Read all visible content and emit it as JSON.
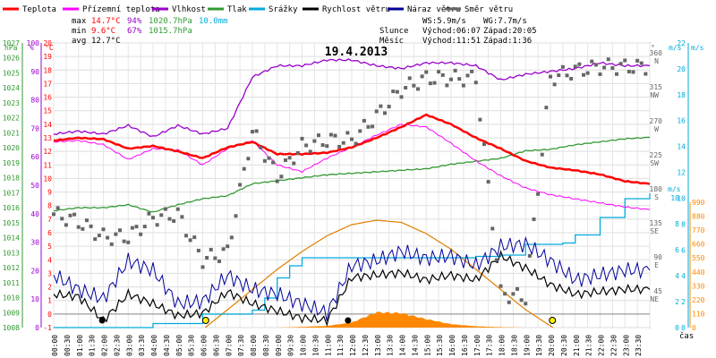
{
  "chart_data": {
    "type": "line",
    "title": "19.4.2013",
    "xlabel": "čas",
    "x_hours": [
      0,
      1,
      2,
      3,
      4,
      5,
      6,
      7,
      8,
      9,
      10,
      11,
      12,
      13,
      14,
      15,
      16,
      17,
      18,
      19,
      20,
      21,
      22,
      23,
      24
    ],
    "time_ticks": [
      "00:00",
      "00:30",
      "01:00",
      "01:30",
      "02:00",
      "02:30",
      "03:00",
      "03:30",
      "04:00",
      "04:30",
      "05:00",
      "05:30",
      "06:00",
      "06:30",
      "07:00",
      "07:30",
      "08:00",
      "08:30",
      "09:00",
      "09:30",
      "10:00",
      "10:30",
      "11:00",
      "11:30",
      "12:00",
      "12:30",
      "13:00",
      "13:30",
      "14:00",
      "14:30",
      "15:00",
      "15:30",
      "16:00",
      "16:30",
      "17:00",
      "17:30",
      "18:00",
      "18:30",
      "19:00",
      "19:30",
      "20:00",
      "20:30",
      "21:00",
      "21:30",
      "22:00",
      "22:30",
      "23:00",
      "23:30"
    ],
    "legend": [
      {
        "label": "Teplota",
        "color": "#ff0000"
      },
      {
        "label": "Přízemní teplota",
        "color": "#ff00ff"
      },
      {
        "label": "Vlhkost",
        "color": "#9900cc"
      },
      {
        "label": "Tlak",
        "color": "#339933"
      },
      {
        "label": "Srážky",
        "color": "#00aadd"
      },
      {
        "label": "Rychlost větru",
        "color": "#000000"
      },
      {
        "label": "Náraz větru",
        "color": "#000099"
      },
      {
        "label": "Směr větru",
        "color": "#666666"
      }
    ],
    "stats": {
      "max": {
        "label": "max",
        "temp": "14.7°C",
        "hum": "94%",
        "press": "1020.7hPa",
        "rain": "10.0mm"
      },
      "min": {
        "label": "min",
        "temp": "9.6°C",
        "hum": "67%",
        "press": "1015.7hPa"
      },
      "avg": {
        "label": "avg",
        "temp": "12.7°C"
      }
    },
    "wind_info": {
      "ws": "WS:5.9m/s",
      "wg": "WG:7.7m/s"
    },
    "sun": {
      "label": "Slunce",
      "rise": "Východ:06:07",
      "set": "Západ:20:05"
    },
    "moon": {
      "label": "Měsíc",
      "rise": "Východ:11:51",
      "set": "Západ:1:36"
    },
    "axes": {
      "hpa": {
        "unit": "hPa",
        "ticks": [
          "1027",
          "1026",
          "1025",
          "1024",
          "1023",
          "1022",
          "1021",
          "1020",
          "1019",
          "1018",
          "1017",
          "1016",
          "1015",
          "1014",
          "1013",
          "1012",
          "1011",
          "1010",
          "1009",
          "1008"
        ]
      },
      "pct": {
        "unit": "%",
        "ticks": [
          "100",
          "90",
          "80",
          "70",
          "60",
          "50",
          "40",
          "30",
          "20",
          "10",
          "0"
        ]
      },
      "temp": {
        "unit": "°C",
        "ticks": [
          "20",
          "19",
          "18",
          "17",
          "16",
          "15",
          "14",
          "13",
          "12",
          "11",
          "10",
          "9",
          "8",
          "7",
          "6",
          "5",
          "4",
          "3",
          "2",
          "1",
          "0",
          "-1"
        ]
      },
      "dir": {
        "unit": "°",
        "ticks": [
          {
            "deg": "360",
            "card": "N"
          },
          {
            "deg": "315",
            "card": "NW"
          },
          {
            "deg": "270",
            "card": "W"
          },
          {
            "deg": "225",
            "card": "SW"
          },
          {
            "deg": "180",
            "card": "S"
          },
          {
            "deg": "135",
            "card": "SE"
          },
          {
            "deg": "90",
            "card": "E"
          },
          {
            "deg": "45",
            "card": "NE"
          }
        ]
      },
      "ms1": {
        "unit": "m/s",
        "ticks": [
          "22",
          "20",
          "18",
          "16",
          "14",
          "12",
          "10",
          "8",
          "6",
          "4",
          "2",
          "0"
        ]
      },
      "ms2": {
        "unit": "m/s",
        "ticks": [
          "10",
          "8",
          "6",
          "4",
          "2",
          "0"
        ]
      },
      "mm": {
        "unit": "mm",
        "ticks": [
          "990",
          "880",
          "770",
          "660",
          "550",
          "440",
          "330",
          "220",
          "110",
          "0"
        ]
      }
    },
    "series": {
      "temperature": {
        "unit": "°C",
        "x": [
          0,
          1,
          2,
          3,
          4,
          5,
          6,
          7,
          8,
          9,
          10,
          11,
          12,
          13,
          14,
          15,
          16,
          17,
          18,
          19,
          20,
          21,
          22,
          23,
          24
        ],
        "values": [
          12.8,
          13.0,
          12.9,
          12.2,
          12.4,
          12.0,
          11.5,
          12.3,
          12.7,
          11.8,
          11.8,
          11.9,
          12.3,
          13.0,
          13.8,
          14.7,
          14.0,
          13.0,
          12.2,
          11.3,
          10.8,
          10.6,
          10.3,
          9.8,
          9.6
        ]
      },
      "ground_temperature": {
        "unit": "°C",
        "x": [
          0,
          1,
          2,
          3,
          4,
          5,
          6,
          7,
          8,
          9,
          10,
          11,
          12,
          13,
          14,
          15,
          16,
          17,
          18,
          19,
          20,
          21,
          22,
          23,
          24
        ],
        "values": [
          12.7,
          12.8,
          12.5,
          11.4,
          12.2,
          12.1,
          11.0,
          12.2,
          12.8,
          11.0,
          10.5,
          11.5,
          12.3,
          13.2,
          14.0,
          13.8,
          12.6,
          11.3,
          10.2,
          9.3,
          8.8,
          8.5,
          8.2,
          7.9,
          7.7
        ]
      },
      "humidity": {
        "unit": "%",
        "x": [
          0,
          1,
          2,
          3,
          4,
          5,
          6,
          7,
          8,
          9,
          10,
          11,
          12,
          13,
          14,
          15,
          16,
          17,
          18,
          19,
          20,
          21,
          22,
          23,
          24
        ],
        "values": [
          68,
          69,
          68,
          71,
          67,
          71,
          68,
          70,
          88,
          92,
          92,
          94,
          94,
          92,
          91,
          93,
          93,
          92,
          87,
          89,
          90,
          91,
          93,
          92,
          92
        ]
      },
      "pressure": {
        "unit": "hPa",
        "x": [
          0,
          1,
          2,
          3,
          4,
          5,
          6,
          7,
          8,
          9,
          10,
          11,
          12,
          13,
          14,
          15,
          16,
          17,
          18,
          19,
          20,
          21,
          22,
          23,
          24
        ],
        "values": [
          1015.8,
          1016.0,
          1016.0,
          1016.2,
          1015.7,
          1016.2,
          1016.6,
          1016.8,
          1017.6,
          1017.8,
          1018.0,
          1018.2,
          1018.3,
          1018.4,
          1018.5,
          1018.6,
          1018.9,
          1019.1,
          1019.3,
          1019.8,
          1019.9,
          1020.2,
          1020.4,
          1020.6,
          1020.7
        ]
      },
      "precipitation": {
        "unit": "mm",
        "x": [
          0,
          2,
          4,
          6,
          8,
          8.5,
          9,
          9.5,
          10,
          12,
          14,
          16,
          17,
          18,
          19,
          20,
          20.5,
          21,
          22,
          23,
          24
        ],
        "values": [
          0,
          0,
          0.3,
          1.0,
          1.3,
          2.2,
          3.7,
          4.6,
          5.2,
          5.2,
          5.2,
          5.2,
          5.3,
          5.4,
          6.2,
          6.2,
          6.3,
          6.9,
          8.2,
          9.6,
          10.0
        ]
      },
      "wind_speed": {
        "unit": "m/s",
        "x": [
          0,
          1,
          2,
          3,
          4,
          5,
          6,
          7,
          8,
          9,
          10,
          11,
          12,
          13,
          14,
          15,
          16,
          17,
          18,
          19,
          20,
          21,
          22,
          23,
          24
        ],
        "values": [
          1.4,
          1.3,
          0.3,
          1.4,
          1.0,
          0.5,
          0.6,
          1.5,
          1.0,
          0.7,
          0.4,
          0.3,
          2.1,
          2.2,
          2.3,
          2.0,
          2.2,
          2.0,
          3.0,
          2.5,
          1.8,
          1.4,
          1.5,
          1.6,
          1.6
        ]
      },
      "wind_gust": {
        "unit": "m/s",
        "x": [
          0,
          1,
          2,
          3,
          4,
          5,
          6,
          7,
          8,
          9,
          10,
          11,
          12,
          13,
          14,
          15,
          16,
          17,
          18,
          19,
          20,
          21,
          22,
          23,
          24
        ],
        "values": [
          2.2,
          1.6,
          1.2,
          2.8,
          2.4,
          1.0,
          1.1,
          2.2,
          1.6,
          1.4,
          1.0,
          0.6,
          2.6,
          2.8,
          3.2,
          2.9,
          3.0,
          2.6,
          3.4,
          3.5,
          2.8,
          2.0,
          2.2,
          2.4,
          2.4
        ]
      },
      "wind_direction": {
        "unit": "°",
        "x": [
          0,
          1,
          2,
          3,
          4,
          5,
          6,
          7,
          8,
          9,
          10,
          11,
          12,
          13,
          14,
          15,
          16,
          17,
          18,
          19,
          20,
          21,
          22,
          23,
          24
        ],
        "values": [
          150,
          140,
          120,
          120,
          145,
          150,
          90,
          100,
          260,
          200,
          240,
          248,
          248,
          280,
          315,
          330,
          330,
          330,
          45,
          40,
          330,
          340,
          345,
          345,
          345
        ]
      },
      "solar_radiation": {
        "unit": "W/m²",
        "x": [
          9,
          10,
          11,
          12,
          13,
          14,
          15,
          16,
          17,
          18,
          19
        ],
        "values": [
          0,
          8,
          20,
          60,
          180,
          170,
          100,
          40,
          15,
          5,
          0
        ]
      },
      "sun_elevation": {
        "unit": "°",
        "x": [
          6.1,
          7,
          8,
          9,
          10,
          11,
          12,
          13,
          14,
          15,
          16,
          17,
          18,
          19,
          20.1
        ],
        "values": [
          0,
          8,
          17,
          26,
          34,
          41,
          46,
          48,
          47,
          42,
          35,
          26,
          17,
          8,
          0
        ]
      }
    }
  }
}
